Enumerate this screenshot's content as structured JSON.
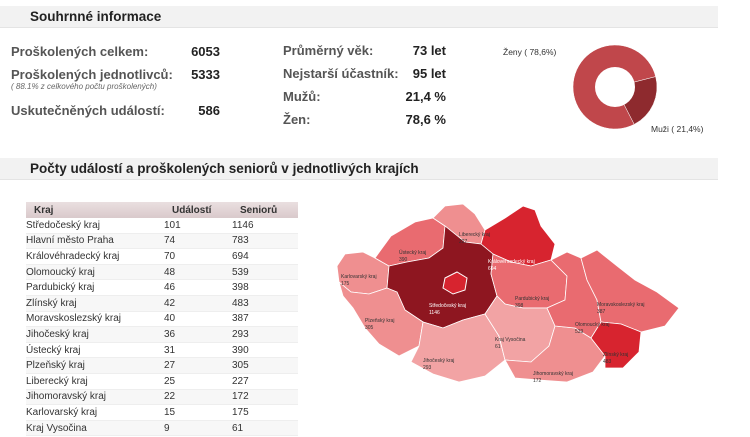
{
  "summary": {
    "title": "Souhrnné informace",
    "left": [
      {
        "label": "Proškolených celkem:",
        "value": "6053"
      },
      {
        "label": "Proškolených jednotlivců:",
        "value": "5333",
        "note": "( 88.1% z celkového počtu proškolených)"
      },
      {
        "label": "Uskutečněných událostí:",
        "value": "586"
      }
    ],
    "right": [
      {
        "label": "Průměrný věk:",
        "value": "73 let"
      },
      {
        "label": "Nejstarší účastník:",
        "value": "95 let"
      },
      {
        "label": "Mužů:",
        "value": "21,4 %"
      },
      {
        "label": "Žen:",
        "value": "78,6 %"
      }
    ],
    "donut": {
      "women_label": "Ženy ( 78,6%)",
      "men_label": "Muži ( 21,4%)",
      "women_pct": 78.6,
      "men_pct": 21.4,
      "women_color": "#c0474b",
      "men_color": "#8e2a2e"
    }
  },
  "regions": {
    "title": "Počty událostí a proškolených seniorů v jednotlivých krajích",
    "columns": [
      "Kraj",
      "Událostí",
      "Seniorů"
    ],
    "rows": [
      [
        "Středočeský kraj",
        "101",
        "1146"
      ],
      [
        "Hlavní město Praha",
        "74",
        "783"
      ],
      [
        "Královéhradecký kraj",
        "70",
        "694"
      ],
      [
        "Olomoucký kraj",
        "48",
        "539"
      ],
      [
        "Pardubický kraj",
        "46",
        "398"
      ],
      [
        "Zlínský kraj",
        "42",
        "483"
      ],
      [
        "Moravskoslezský kraj",
        "40",
        "387"
      ],
      [
        "Jihočeský kraj",
        "36",
        "293"
      ],
      [
        "Ústecký kraj",
        "31",
        "390"
      ],
      [
        "Plzeňský kraj",
        "27",
        "305"
      ],
      [
        "Liberecký kraj",
        "25",
        "227"
      ],
      [
        "Jihomoravský kraj",
        "22",
        "172"
      ],
      [
        "Karlovarský kraj",
        "15",
        "175"
      ],
      [
        "Kraj Vysočina",
        "9",
        "61"
      ]
    ]
  },
  "map_labels": {
    "karlovarsky": [
      "Karlovarský kraj",
      "175"
    ],
    "ustecky": [
      "Ústecký kraj",
      "390"
    ],
    "liberecky": [
      "Liberecký kraj",
      "227"
    ],
    "kralovehradecky": [
      "Královéhradecký kraj",
      "694"
    ],
    "stredocesky": [
      "Středočeský kraj",
      "1146"
    ],
    "plzensky": [
      "Plzeňský kraj",
      "305"
    ],
    "pardubicky": [
      "Pardubický kraj",
      "398"
    ],
    "moravskoslezsky": [
      "Moravskoslezský kraj",
      "387"
    ],
    "vysocina": [
      "Kraj Vysočina",
      "61"
    ],
    "olomoucky": [
      "Olomoucký kraj",
      "539"
    ],
    "jihocesky": [
      "Jihočeský kraj",
      "293"
    ],
    "zlinsky": [
      "Zlínský kraj",
      "483"
    ],
    "jihomoravsky": [
      "Jihomoravský kraj",
      "172"
    ]
  }
}
